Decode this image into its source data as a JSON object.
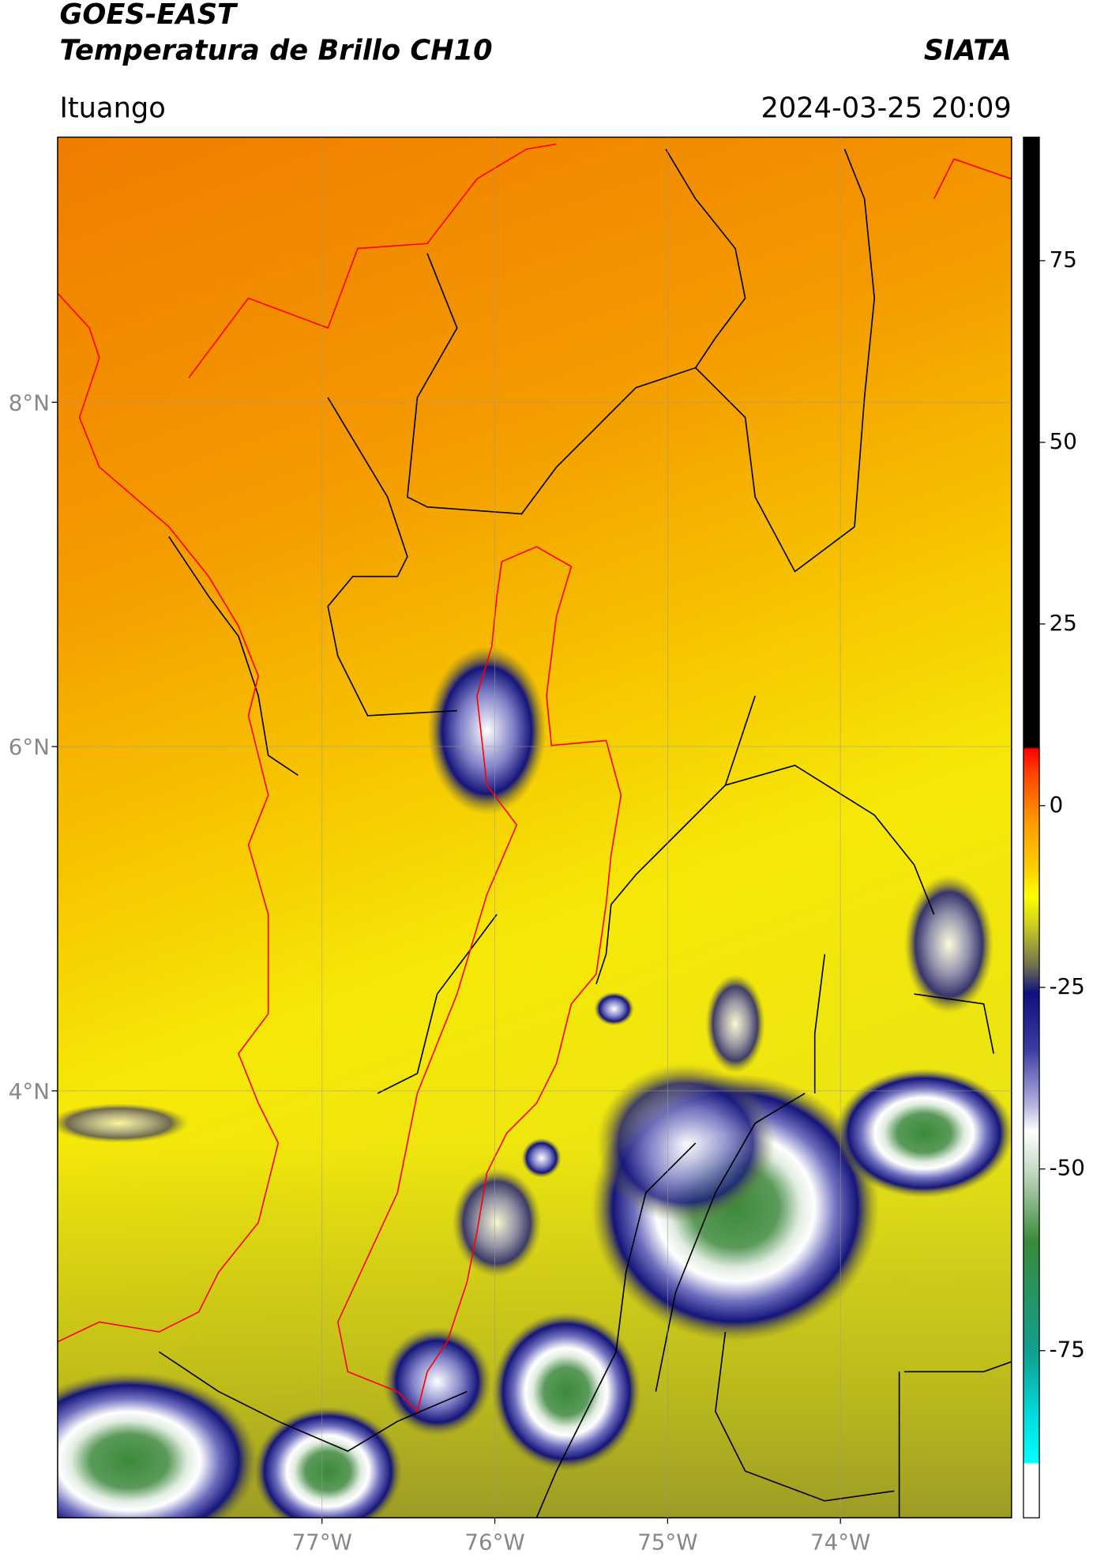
{
  "header": {
    "title": "GOES-EAST",
    "subtitle": "Temperatura de Brillo CH10",
    "agency": "SIATA",
    "location": "Ituango",
    "timestamp": "2024-03-25 20:09"
  },
  "chart_data": {
    "type": "map",
    "xlim": [
      -78.53,
      -73.01
    ],
    "ylim": [
      1.52,
      9.54
    ],
    "xticks": [
      {
        "value": -77,
        "label": "77°W"
      },
      {
        "value": -76,
        "label": "76°W"
      },
      {
        "value": -75,
        "label": "75°W"
      },
      {
        "value": -74,
        "label": "74°W"
      }
    ],
    "yticks": [
      {
        "value": 4,
        "label": "4°N"
      },
      {
        "value": 6,
        "label": "6°N"
      },
      {
        "value": 8,
        "label": "8°N"
      }
    ],
    "grid": true,
    "colorbar": {
      "lim": [
        -98,
        92
      ],
      "ticks": [
        -75,
        -50,
        -25,
        0,
        25,
        50,
        75
      ]
    }
  }
}
